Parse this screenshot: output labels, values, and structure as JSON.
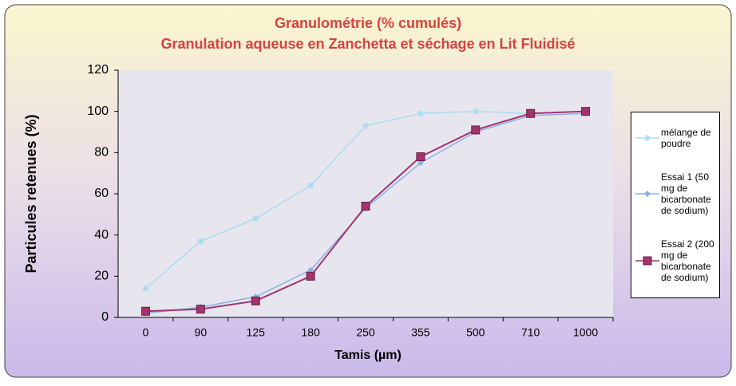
{
  "chart_data": {
    "type": "line",
    "title": "Granulométrie (% cumulés)",
    "subtitle": "Granulation aqueuse en Zanchetta et séchage en Lit Fluidisé",
    "x_label": "Tamis (µm)",
    "y_label": "Particules retenues (%)",
    "categories": [
      "0",
      "90",
      "125",
      "180",
      "250",
      "355",
      "500",
      "710",
      "1000"
    ],
    "series": [
      {
        "name": "mélange de poudre",
        "color": "#a8dcef",
        "marker": "star",
        "values": [
          14,
          37,
          48,
          64,
          93,
          99,
          100,
          99,
          100
        ]
      },
      {
        "name": "Essai 1 (50 mg de bicarbonate de sodium)",
        "color": "#8cb0e4",
        "marker": "diamond",
        "values": [
          2,
          5,
          10,
          23,
          53,
          75,
          90,
          98,
          99
        ]
      },
      {
        "name": "Essai 2 (200 mg de bicarbonate de sodium)",
        "color": "#a3336d",
        "marker": "square",
        "values": [
          3,
          4,
          8,
          20,
          54,
          78,
          91,
          99,
          100
        ]
      }
    ],
    "ylim": [
      0,
      120
    ],
    "yticks": [
      0,
      20,
      40,
      60,
      80,
      100,
      120
    ],
    "legend": "right"
  }
}
